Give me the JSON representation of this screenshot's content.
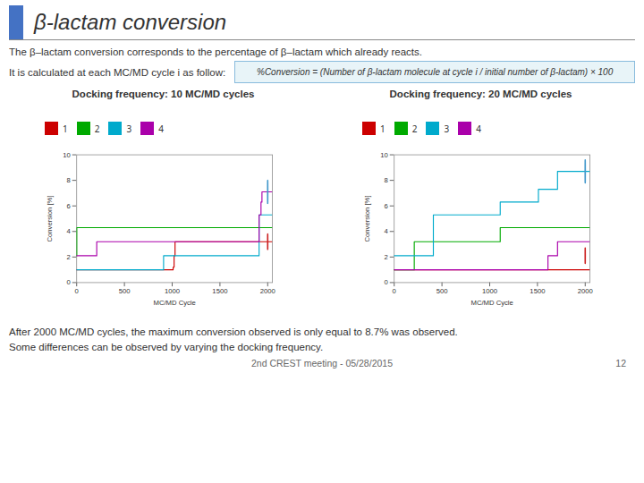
{
  "title": "β-lactam conversion",
  "title_color": "#4472C4",
  "subtitle": [
    "The β–lactam conversion corresponds to the percentage of β–lactam which already reacts.",
    "It is calculated at each MC/MD cycle i as follow:"
  ],
  "formula": "%Conversion = (Number of β-lactam molecule at cycle i / initial number of β-lactam) × 100",
  "caption": [
    "After 2000 MC/MD cycles, the maximum conversion observed is only equal to 8.7% was observed.",
    "Some differences can be observed by varying the docking frequency."
  ],
  "footer": [
    "2nd CREST meeting - 05/28/2015",
    "12"
  ],
  "chart_data": [
    {
      "type": "line",
      "line_style": "step",
      "title": "Docking frequency: 10 MC/MD cycles",
      "xlabel": "MC/MD Cycle",
      "ylabel": "Conversion [%]",
      "xlim": [
        0,
        2050
      ],
      "ylim": [
        0,
        10
      ],
      "xticks": [
        0,
        500,
        1000,
        1500,
        2000
      ],
      "yticks": [
        0,
        2,
        4,
        6,
        8,
        10
      ],
      "grid": false,
      "legend": "upper left",
      "series": [
        {
          "name": "1",
          "color": "#CC0000",
          "x": [
            0,
            1,
            10,
            20,
            1000,
            1010,
            1020,
            1030,
            1040,
            1050,
            2050
          ],
          "values": [
            1,
            1,
            1,
            1,
            1,
            1.2,
            2.1,
            3.2,
            3.2,
            3.2,
            3.2
          ]
        },
        {
          "name": "2",
          "color": "#00AA00",
          "x": [
            0,
            1,
            10,
            20,
            2050
          ],
          "values": [
            2.1,
            4.3,
            4.3,
            4.3,
            4.3
          ]
        },
        {
          "name": "3",
          "color": "#00AACC",
          "x": [
            0,
            1,
            10,
            900,
            910,
            1000,
            1010,
            1900,
            1910,
            2050
          ],
          "values": [
            1,
            1,
            1,
            1,
            2.1,
            2.1,
            2.1,
            2.1,
            5.3,
            5.3
          ]
        },
        {
          "name": "4",
          "color": "#AA00AA",
          "x": [
            0,
            1,
            200,
            210,
            1900,
            1910,
            1930,
            1940,
            2050
          ],
          "values": [
            2.1,
            2.1,
            2.1,
            3.2,
            3.2,
            5.3,
            6.3,
            7.1,
            7.1
          ]
        }
      ],
      "annotations": [
        {
          "shape": "circle",
          "cx": 2000,
          "cy": 7.1,
          "r": 0.9,
          "color": "#4499CC"
        },
        {
          "shape": "circle",
          "cx": 2000,
          "cy": 3.2,
          "r": 0.6,
          "color": "#CC2222"
        }
      ]
    },
    {
      "type": "line",
      "line_style": "step",
      "title": "Docking frequency: 20 MC/MD cycles",
      "xlabel": "MC/MD Cycle",
      "ylabel": "Conversion [%]",
      "xlim": [
        0,
        2050
      ],
      "ylim": [
        0,
        10
      ],
      "xticks": [
        0,
        500,
        1000,
        1500,
        2000
      ],
      "yticks": [
        0,
        2,
        4,
        6,
        8,
        10
      ],
      "grid": false,
      "legend": "upper left",
      "series": [
        {
          "name": "1",
          "color": "#CC0000",
          "x": [
            0,
            1600,
            1610,
            2050
          ],
          "values": [
            1,
            1,
            1,
            1
          ]
        },
        {
          "name": "2",
          "color": "#00AA00",
          "x": [
            0,
            200,
            210,
            1100,
            1110,
            2050
          ],
          "values": [
            1,
            1,
            3.2,
            3.2,
            4.3,
            4.3
          ]
        },
        {
          "name": "3",
          "color": "#00AACC",
          "x": [
            0,
            1,
            400,
            410,
            1100,
            1110,
            1500,
            1510,
            1700,
            1710,
            2050
          ],
          "values": [
            2.1,
            2.1,
            2.1,
            5.3,
            5.3,
            6.3,
            6.3,
            7.3,
            7.3,
            8.7,
            8.7
          ]
        },
        {
          "name": "4",
          "color": "#AA00AA",
          "x": [
            0,
            1600,
            1610,
            1700,
            1710,
            2050
          ],
          "values": [
            1,
            1,
            2.1,
            2.1,
            3.2,
            3.2
          ]
        }
      ],
      "annotations": [
        {
          "shape": "circle",
          "cx": 2000,
          "cy": 8.7,
          "r": 0.9,
          "color": "#4499CC"
        },
        {
          "shape": "circle",
          "cx": 2000,
          "cy": 2.1,
          "r": 0.6,
          "color": "#CC2222"
        }
      ]
    }
  ]
}
